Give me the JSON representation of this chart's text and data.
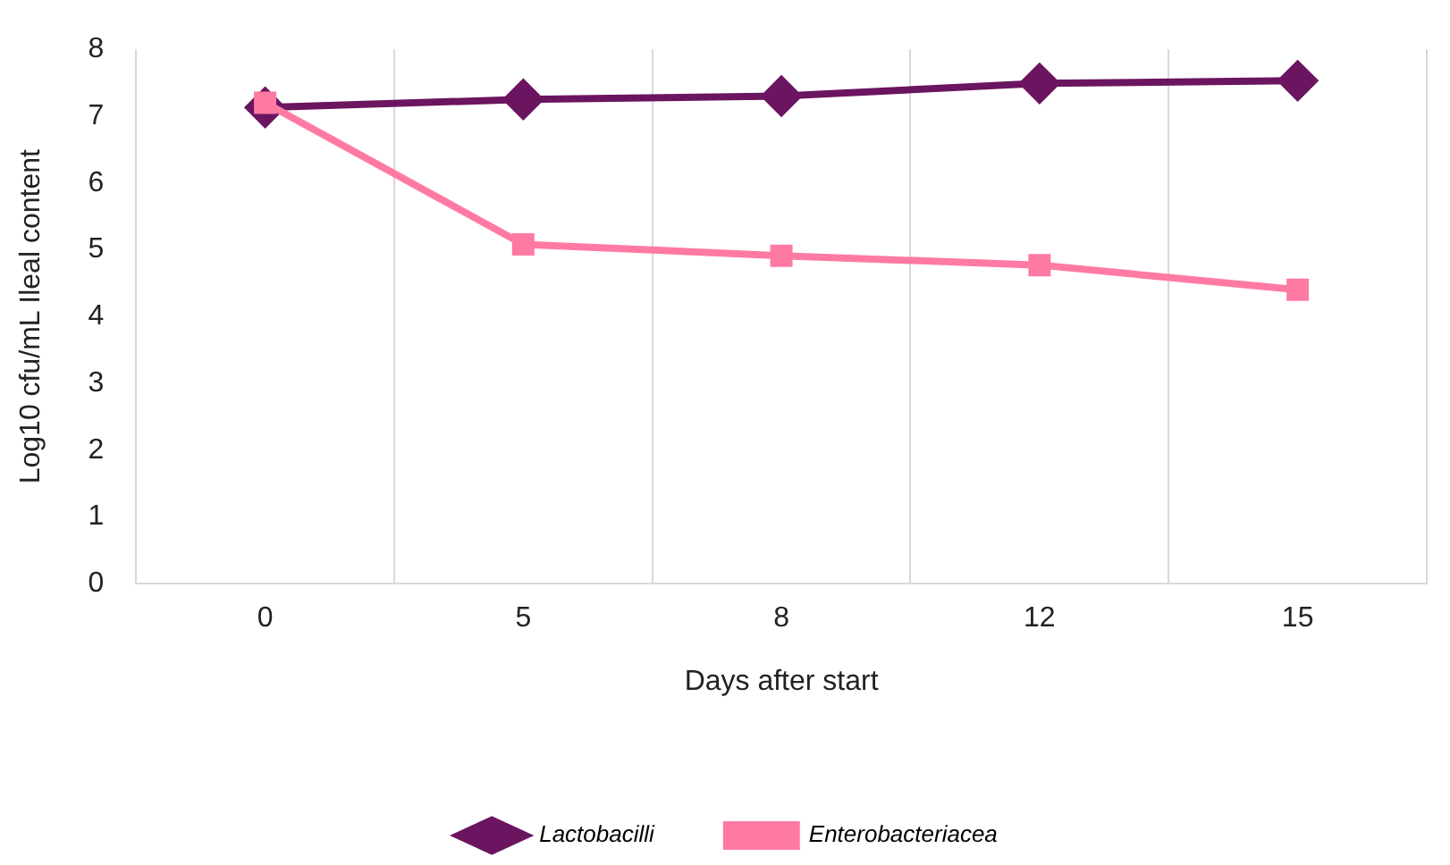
{
  "chart_data": {
    "type": "line",
    "xlabel": "Days after start",
    "ylabel": "Log10 cfu/mL Ileal content",
    "categories": [
      "0",
      "5",
      "8",
      "12",
      "15"
    ],
    "series": [
      {
        "name": "Lactobacilli",
        "color": "#6b1560",
        "marker": "diamond",
        "values": [
          7.13,
          7.25,
          7.3,
          7.49,
          7.53
        ]
      },
      {
        "name": "Enterobacteriacea",
        "color": "#ff7aa2",
        "marker": "square",
        "values": [
          7.2,
          5.08,
          4.91,
          4.77,
          4.4
        ]
      }
    ],
    "ylim": [
      0,
      8
    ],
    "yticks": [
      0,
      1,
      2,
      3,
      4,
      5,
      6,
      7,
      8
    ],
    "grid": "x",
    "legend": "bottom"
  }
}
